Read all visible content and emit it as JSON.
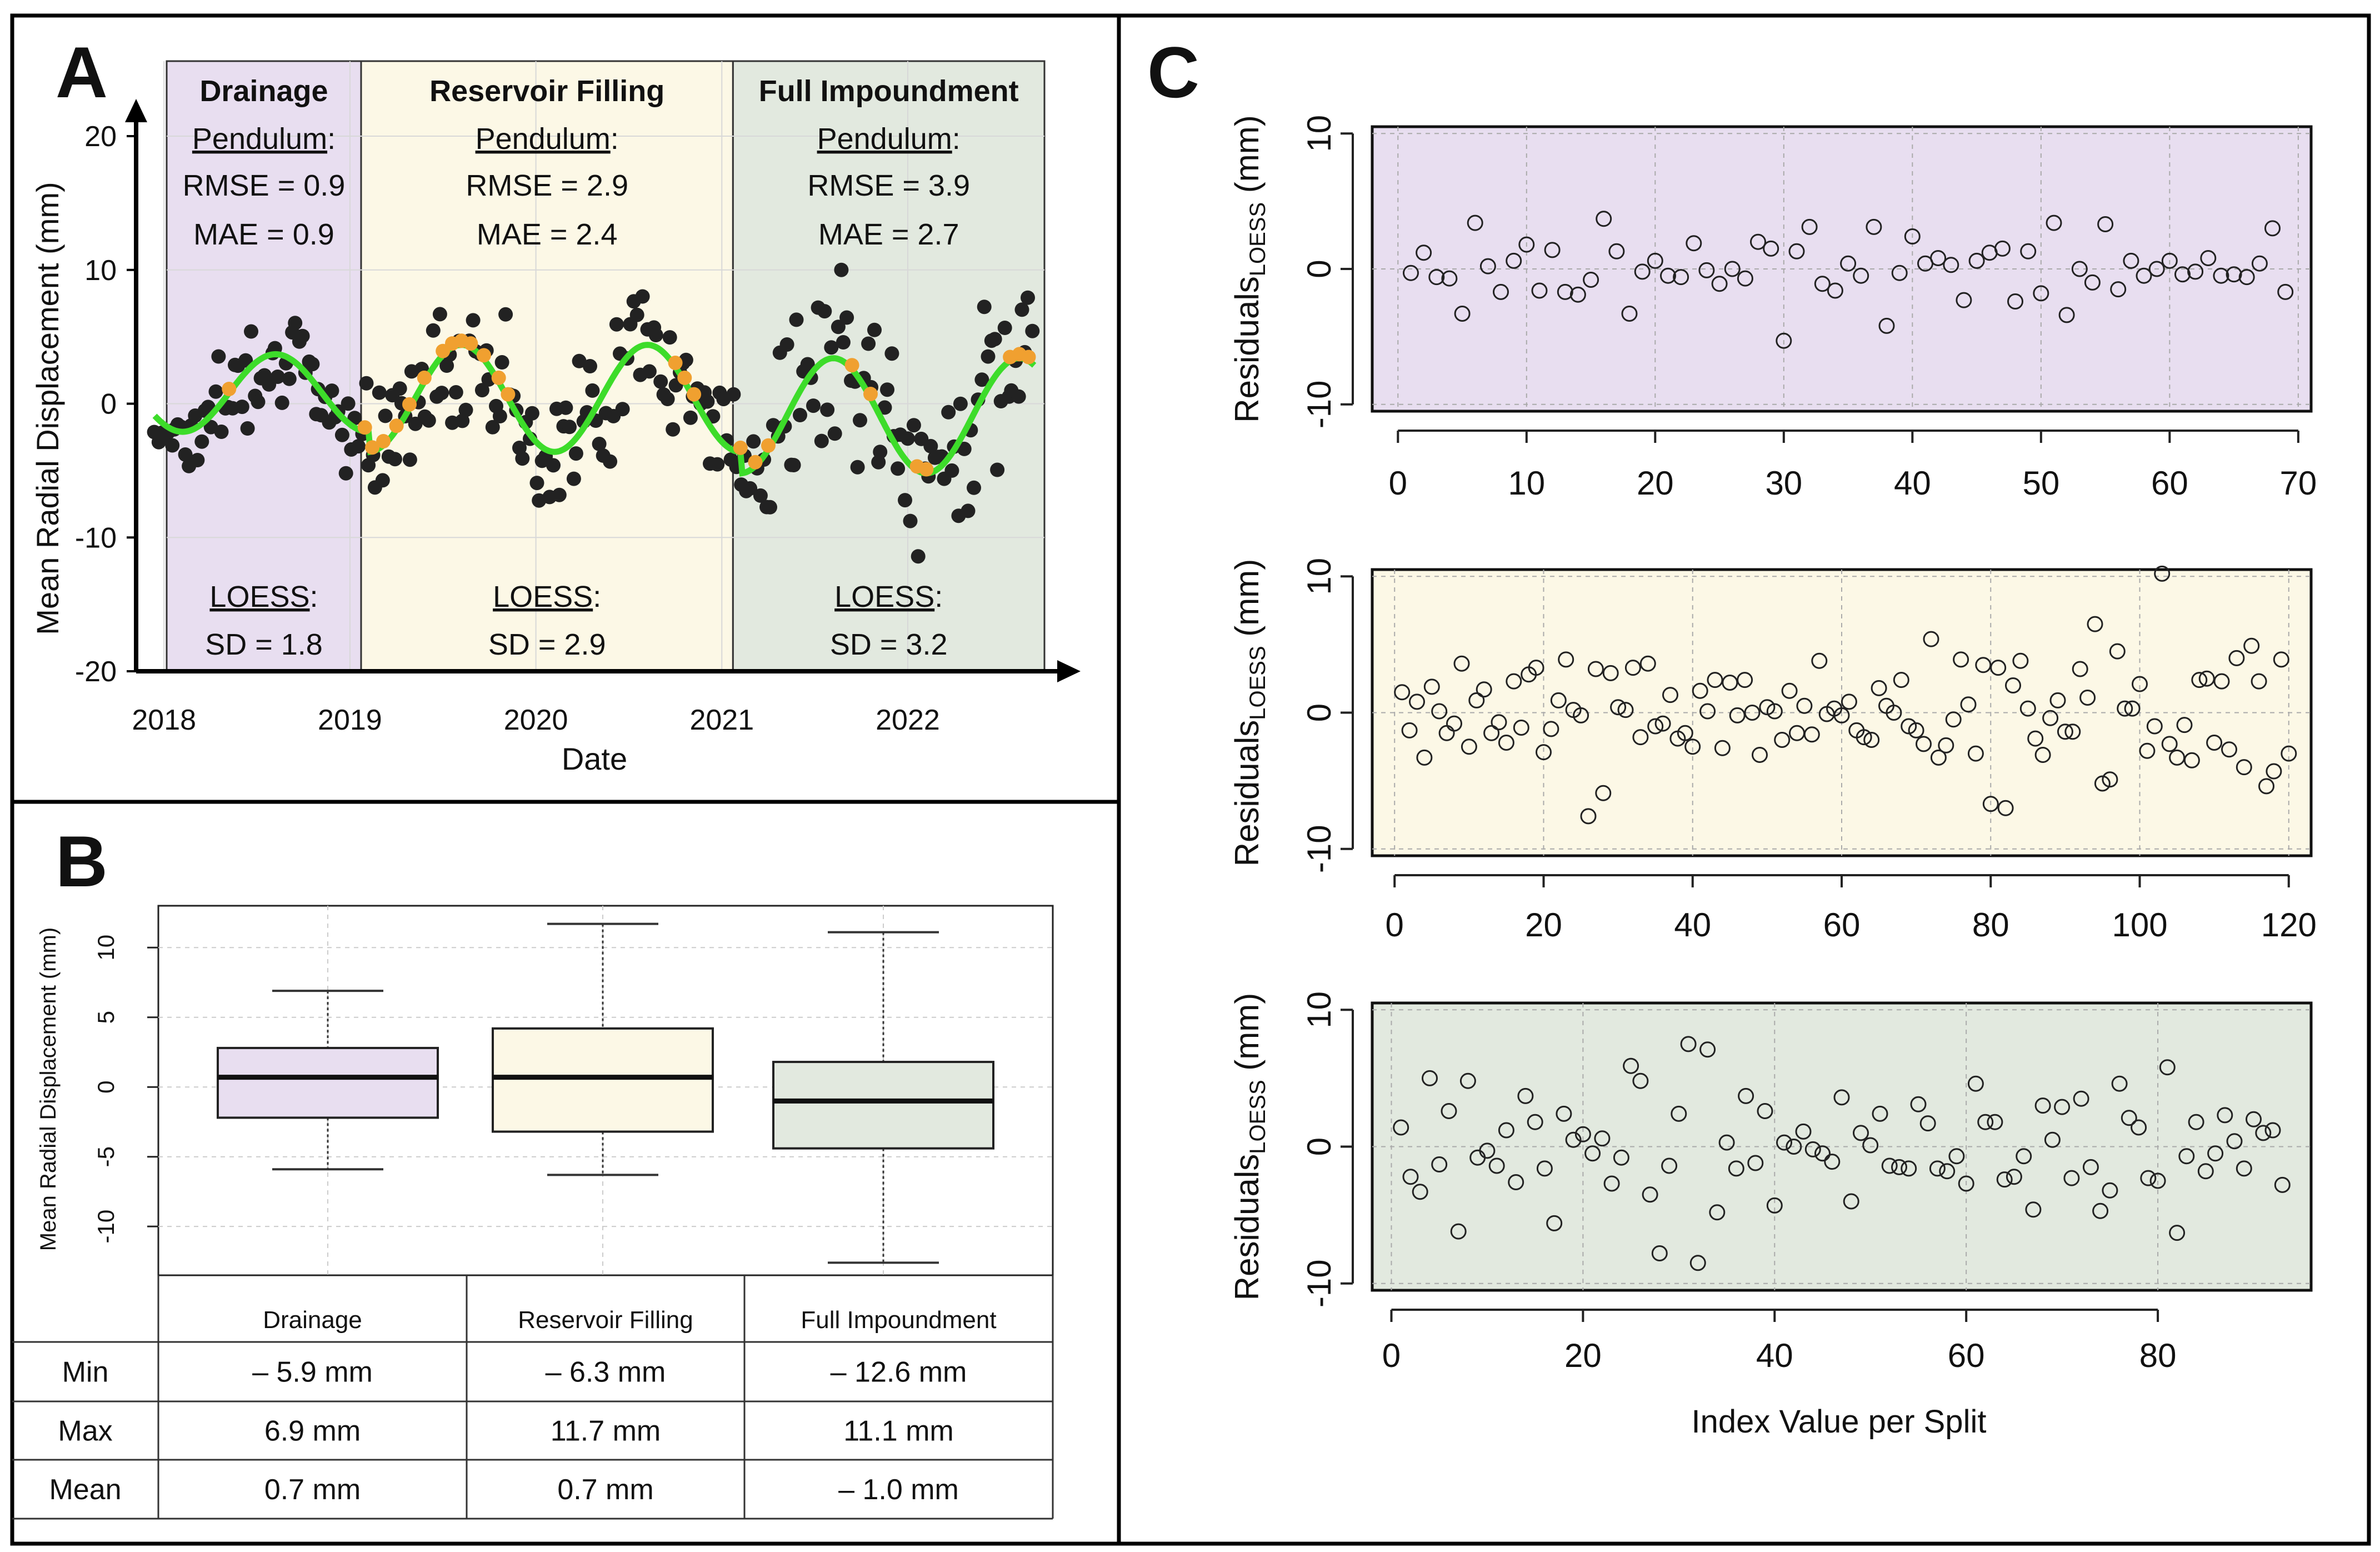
{
  "panel_labels": {
    "a": "A",
    "b": "B",
    "c": "C"
  },
  "colors": {
    "drainage": "#e8def0",
    "filling": "#fcf8e6",
    "full": "#e2e9df",
    "green": "#3ddc2a",
    "orange": "#f0a030",
    "dark": "#222222"
  },
  "chart_data": [
    {
      "id": "A",
      "type": "scatter",
      "title": "",
      "xlabel": "Date",
      "ylabel": "Mean Radial Displacement (mm)",
      "xlim": [
        2017.85,
        2022.75
      ],
      "ylim": [
        -20,
        20
      ],
      "x_ticks": [
        "2018",
        "2019",
        "2020",
        "2021",
        "2022"
      ],
      "y_ticks": [
        "20",
        "10",
        "0",
        "-10",
        "-20"
      ],
      "x_tick_values": [
        2018,
        2019,
        2020,
        2021,
        2022
      ],
      "y_tick_values": [
        20,
        10,
        0,
        -10,
        -20
      ],
      "phases": [
        {
          "name": "Drainage",
          "x_start": 2017.85,
          "x_end": 2019.06,
          "pendulum_label": "Pendulum",
          "rmse": "RMSE = 0.9",
          "mae": "MAE = 0.9",
          "loess_label": "LOESS",
          "sd": "SD = 1.8"
        },
        {
          "name": "Reservoir Filling",
          "x_start": 2019.06,
          "x_end": 2021.06,
          "pendulum_label": "Pendulum",
          "rmse": "RMSE = 2.9",
          "mae": "MAE = 2.4",
          "loess_label": "LOESS",
          "sd": "SD = 2.9"
        },
        {
          "name": "Full Impoundment",
          "x_start": 2021.06,
          "x_end": 2022.75,
          "pendulum_label": "Pendulum",
          "rmse": "RMSE = 3.9",
          "mae": "MAE = 2.7",
          "loess_label": "LOESS",
          "sd": "SD = 3.2"
        }
      ],
      "series": [
        {
          "name": "Observed",
          "color": "#222222",
          "note": "dense point cloud around seasonal curve"
        },
        {
          "name": "LOESS",
          "color": "#3ddc2a"
        },
        {
          "name": "Pendulum",
          "color": "#f0a030"
        }
      ]
    },
    {
      "id": "B",
      "type": "box",
      "ylabel": "Mean Radial Displacement (mm)",
      "ylim": [
        -13.5,
        13
      ],
      "y_ticks": [
        "10",
        "5",
        "0",
        "-5",
        "-10"
      ],
      "y_tick_values": [
        10,
        5,
        0,
        -5,
        -10
      ],
      "categories": [
        "Drainage",
        "Reservoir Filling",
        "Full Impoundment"
      ],
      "boxes": [
        {
          "min": -5.9,
          "q1": -2.2,
          "median": 0.7,
          "q3": 2.8,
          "max": 6.9
        },
        {
          "min": -6.3,
          "q1": -3.2,
          "median": 0.7,
          "q3": 4.2,
          "max": 11.7
        },
        {
          "min": -12.6,
          "q1": -4.4,
          "median": -1.0,
          "q3": 1.8,
          "max": 11.1
        }
      ]
    },
    {
      "id": "C1",
      "type": "scatter",
      "ylabel": "Residuals",
      "ylabel_sub": "LOESS",
      "ylabel_unit": " (mm)",
      "xlim": [
        -2,
        71
      ],
      "ylim": [
        -10.5,
        10.5
      ],
      "x_ticks": [
        "0",
        "10",
        "20",
        "30",
        "40",
        "50",
        "60",
        "70"
      ],
      "x_tick_values": [
        0,
        10,
        20,
        30,
        40,
        50,
        60,
        70
      ],
      "y_ticks": [
        "10",
        "0",
        "-10"
      ],
      "y_tick_values": [
        10,
        0,
        -10
      ],
      "y": [
        -0.3,
        1.2,
        -0.6,
        -0.7,
        -3.3,
        3.4,
        0.2,
        -1.7,
        0.6,
        1.8,
        -1.6,
        1.4,
        -1.7,
        -1.9,
        -0.8,
        3.7,
        1.3,
        -3.3,
        -0.2,
        0.6,
        -0.5,
        -0.6,
        1.9,
        -0.1,
        -1.1,
        0.0,
        -0.7,
        2.0,
        1.5,
        -5.3,
        1.3,
        3.1,
        -1.1,
        -1.6,
        0.4,
        -0.5,
        3.1,
        -4.2,
        -0.3,
        2.4,
        0.4,
        0.8,
        0.3,
        -2.3,
        0.6,
        1.2,
        1.5,
        -2.4,
        1.3,
        -1.8,
        3.4,
        -3.4,
        0.0,
        -1.0,
        3.3,
        -1.5,
        0.6,
        -0.5,
        0.0,
        0.6,
        -0.4,
        -0.2,
        0.8,
        -0.5,
        -0.4,
        -0.6,
        0.4,
        3.0,
        -1.7
      ]
    },
    {
      "id": "C2",
      "type": "scatter",
      "ylabel": "Residuals",
      "ylabel_sub": "LOESS",
      "ylabel_unit": " (mm)",
      "xlim": [
        -3,
        123
      ],
      "ylim": [
        -10.5,
        10.5
      ],
      "x_ticks": [
        "0",
        "20",
        "40",
        "60",
        "80",
        "100",
        "120"
      ],
      "x_tick_values": [
        0,
        20,
        40,
        60,
        80,
        100,
        120
      ],
      "y_ticks": [
        "10",
        "0",
        "-10"
      ],
      "y_tick_values": [
        10,
        0,
        -10
      ],
      "y": [
        1.5,
        -1.3,
        0.8,
        -3.3,
        1.9,
        0.1,
        -1.5,
        -0.8,
        3.6,
        -2.5,
        0.9,
        1.7,
        -1.5,
        -0.7,
        -2.2,
        2.3,
        -1.1,
        2.8,
        3.3,
        -2.9,
        -1.2,
        0.9,
        3.9,
        0.2,
        -0.2,
        -7.6,
        3.2,
        -5.9,
        2.9,
        0.4,
        0.2,
        3.3,
        -1.8,
        3.6,
        -1.0,
        -0.8,
        1.3,
        -1.9,
        -1.5,
        -2.5,
        1.6,
        0.1,
        2.4,
        -2.6,
        2.2,
        -0.2,
        2.4,
        0.0,
        -3.1,
        0.4,
        0.1,
        -2.0,
        1.6,
        -1.5,
        0.5,
        -1.6,
        3.8,
        -0.1,
        0.3,
        -0.2,
        0.8,
        -1.3,
        -1.8,
        -2.0,
        1.8,
        0.5,
        0.0,
        2.4,
        -1.0,
        -1.3,
        -2.3,
        5.4,
        -3.3,
        -2.4,
        -0.5,
        3.9,
        0.6,
        -3.0,
        3.5,
        -6.7,
        3.3,
        -7.0,
        2.0,
        3.8,
        0.3,
        -1.9,
        -3.1,
        -0.4,
        0.9,
        -1.4,
        -1.4,
        3.2,
        1.1,
        6.5,
        -5.2,
        -4.9,
        4.5,
        0.3,
        0.3,
        2.1,
        -2.8,
        -1.0,
        10.2,
        -2.3,
        -3.3,
        -0.9,
        -3.5,
        2.4,
        2.5,
        -2.2,
        2.3,
        -2.7,
        4.0,
        -4.0,
        4.9,
        2.3,
        -5.4,
        -4.3,
        3.9,
        -3.0
      ]
    },
    {
      "id": "C3",
      "type": "scatter",
      "ylabel": "Residuals",
      "ylabel_sub": "LOESS",
      "ylabel_unit": " (mm)",
      "xlabel": "Index Value per Split",
      "xlim": [
        -2,
        96
      ],
      "ylim": [
        -10.5,
        10.5
      ],
      "x_ticks": [
        "0",
        "20",
        "40",
        "60",
        "80"
      ],
      "x_tick_values": [
        0,
        20,
        40,
        60,
        80
      ],
      "y_ticks": [
        "10",
        "0",
        "-10"
      ],
      "y_tick_values": [
        10,
        0,
        -10
      ],
      "y": [
        1.4,
        -2.2,
        -3.3,
        5.0,
        -1.3,
        2.6,
        -6.2,
        4.8,
        -0.8,
        -0.3,
        -1.4,
        1.2,
        -2.6,
        3.7,
        1.8,
        -1.6,
        -5.6,
        2.4,
        0.5,
        0.9,
        -0.5,
        0.6,
        -2.7,
        -0.8,
        5.9,
        4.8,
        -3.5,
        -7.8,
        -1.4,
        2.4,
        7.5,
        -8.5,
        7.1,
        -4.8,
        0.3,
        -1.6,
        3.7,
        -1.2,
        2.6,
        -4.3,
        0.3,
        0.0,
        1.1,
        -0.2,
        -0.5,
        -1.1,
        3.6,
        -4.0,
        1.0,
        0.1,
        2.4,
        -1.4,
        -1.5,
        -1.6,
        3.1,
        1.7,
        -1.6,
        -1.8,
        -0.7,
        -2.7,
        4.6,
        1.8,
        1.8,
        -2.4,
        -2.2,
        -0.7,
        -4.6,
        3.0,
        0.5,
        2.9,
        -2.3,
        3.5,
        -1.5,
        -4.7,
        -3.2,
        4.6,
        2.1,
        1.4,
        -2.3,
        -2.5,
        5.8,
        -6.3,
        -0.7,
        1.8,
        -1.8,
        -0.5,
        2.3,
        0.4,
        -1.6,
        2.0,
        1.0,
        1.2,
        -2.8
      ]
    }
  ],
  "table_b": {
    "headers": [
      "Drainage",
      "Reservoir Filling",
      "Full Impoundment"
    ],
    "rows": [
      {
        "label": "Min",
        "values": [
          "– 5.9 mm",
          "– 6.3 mm",
          "– 12.6 mm"
        ]
      },
      {
        "label": "Max",
        "values": [
          "6.9 mm",
          "11.7 mm",
          "11.1 mm"
        ]
      },
      {
        "label": "Mean",
        "values": [
          "0.7 mm",
          "0.7 mm",
          "– 1.0 mm"
        ]
      }
    ]
  }
}
